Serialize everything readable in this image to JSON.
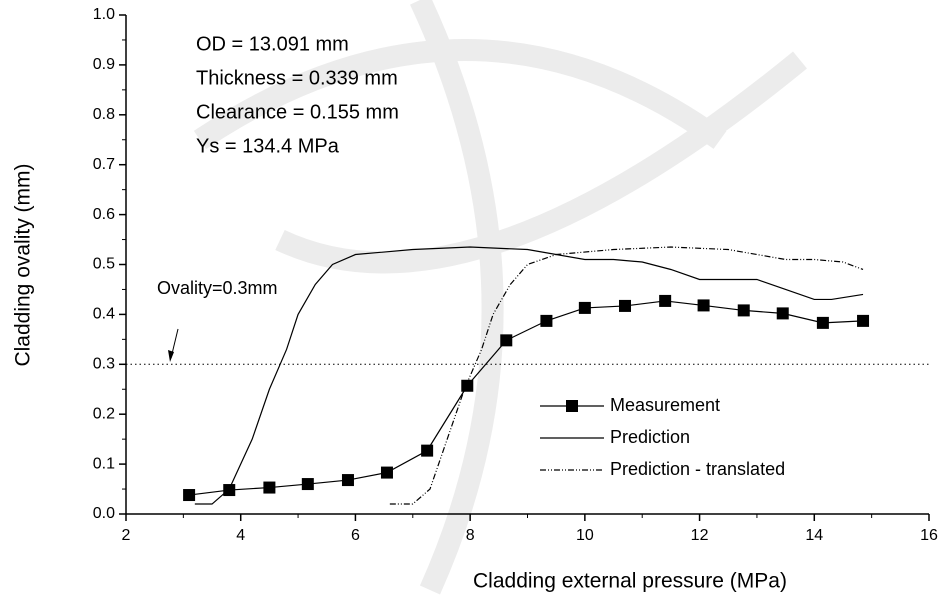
{
  "chart_data": {
    "type": "line",
    "x_label": "Cladding external pressure (MPa)",
    "y_label": "Cladding ovality (mm)",
    "xlim": [
      2,
      16
    ],
    "xticks": [
      2,
      4,
      6,
      8,
      10,
      12,
      14,
      16
    ],
    "ylim": [
      0,
      1
    ],
    "yticks": [
      {
        "value": 0,
        "label": "0.0"
      },
      0.1,
      0.2,
      0.3,
      0.4,
      0.5,
      0.6,
      0.7,
      0.8,
      0.9,
      {
        "value": 1,
        "label": "1.0"
      }
    ],
    "annotations": [
      "OD = 13.091 mm",
      "Thickness = 0.339 mm",
      "Clearance = 0.155 mm",
      "Ys = 134.4 MPa"
    ],
    "reference_line": {
      "value": 0.3,
      "label": "Ovality=0.3mm"
    },
    "series": [
      {
        "name": "Measurement",
        "color": "#000000",
        "style": "solid-marker",
        "x": [
          3.1,
          3.8,
          4.5,
          5.17,
          5.87,
          6.55,
          7.25,
          7.95,
          8.63,
          9.33,
          10.0,
          10.7,
          11.4,
          12.07,
          12.77,
          13.45,
          14.15,
          14.85
        ],
        "values": [
          0.038,
          0.048,
          0.053,
          0.06,
          0.068,
          0.083,
          0.127,
          0.257,
          0.348,
          0.387,
          0.413,
          0.417,
          0.427,
          0.418,
          0.408,
          0.402,
          0.383,
          0.387
        ]
      },
      {
        "name": "Prediction",
        "color": "#000000",
        "style": "solid",
        "x": [
          3.2,
          3.5,
          3.8,
          4.2,
          4.5,
          4.8,
          5.0,
          5.3,
          5.6,
          6.0,
          7.0,
          8.0,
          9.0,
          9.5,
          10.0,
          10.5,
          11.0,
          11.5,
          12.0,
          12.5,
          13.0,
          13.5,
          14.0,
          14.3,
          14.85
        ],
        "values": [
          0.02,
          0.02,
          0.05,
          0.15,
          0.25,
          0.33,
          0.4,
          0.46,
          0.5,
          0.52,
          0.53,
          0.535,
          0.53,
          0.52,
          0.51,
          0.51,
          0.505,
          0.49,
          0.47,
          0.47,
          0.47,
          0.45,
          0.43,
          0.43,
          0.44
        ]
      },
      {
        "name": "Prediction - translated",
        "color": "#000000",
        "style": "dashdot",
        "x": [
          6.6,
          7.0,
          7.3,
          7.6,
          7.9,
          8.2,
          8.4,
          8.7,
          9.0,
          9.5,
          10.5,
          11.5,
          12.5,
          13.0,
          13.5,
          14.0,
          14.5,
          14.85
        ],
        "values": [
          0.02,
          0.02,
          0.05,
          0.15,
          0.25,
          0.33,
          0.4,
          0.46,
          0.5,
          0.52,
          0.53,
          0.535,
          0.53,
          0.52,
          0.51,
          0.51,
          0.505,
          0.49
        ]
      }
    ]
  }
}
